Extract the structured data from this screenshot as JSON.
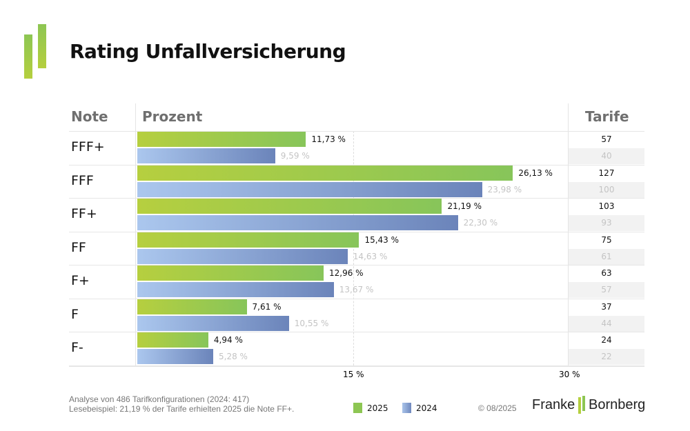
{
  "title": "Rating Unfallversicherung",
  "headers": {
    "note": "Note",
    "prozent": "Prozent",
    "tarife": "Tarife"
  },
  "colors": {
    "2025": "#8dc653",
    "2024": "#7590c4"
  },
  "chart_data": {
    "type": "bar",
    "orientation": "horizontal",
    "categories": [
      "FFF+",
      "FFF",
      "FF+",
      "FF",
      "F+",
      "F",
      "F-"
    ],
    "series": [
      {
        "name": "2025",
        "values": [
          11.73,
          26.13,
          21.19,
          15.43,
          12.96,
          7.61,
          4.94
        ],
        "labels": [
          "11,73 %",
          "26,13 %",
          "21,19 %",
          "15,43 %",
          "12,96 %",
          "7,61 %",
          "4,94 %"
        ],
        "tarife": [
          "57",
          "127",
          "103",
          "75",
          "63",
          "37",
          "24"
        ]
      },
      {
        "name": "2024",
        "values": [
          9.59,
          23.98,
          22.3,
          14.63,
          13.67,
          10.55,
          5.28
        ],
        "labels": [
          "9,59 %",
          "23,98 %",
          "22,30 %",
          "14,63 %",
          "13,67 %",
          "10,55 %",
          "5,28 %"
        ],
        "tarife": [
          "40",
          "100",
          "93",
          "61",
          "57",
          "44",
          "22"
        ]
      }
    ],
    "xlim": [
      0,
      30
    ],
    "xticks": [
      "15 %",
      "30 %"
    ],
    "legend": "bottom"
  },
  "footer": {
    "line1": "Analyse von 486 Tarifkonfigurationen (2024: 417)",
    "line2": "Lesebeispiel: 21,19 % der Tarife erhielten 2025 die Note FF+.",
    "copyright": "© 08/2025",
    "brand_left": "Franke",
    "brand_right": "Bornberg"
  }
}
